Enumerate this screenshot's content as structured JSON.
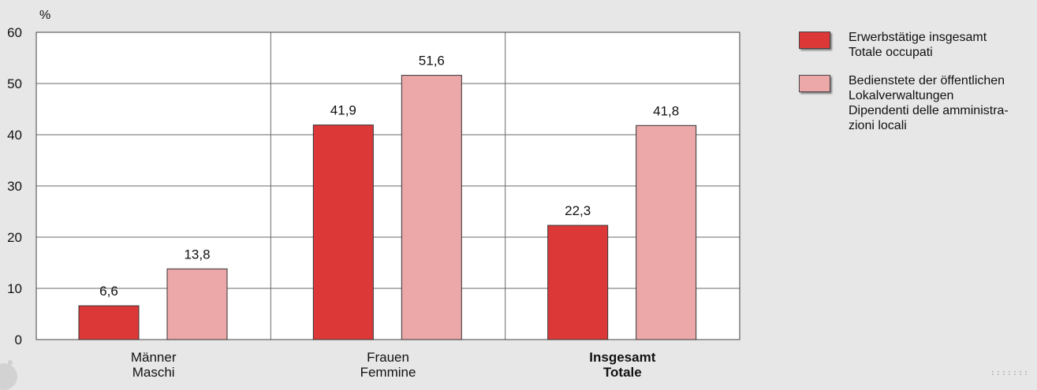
{
  "chart_data": {
    "type": "bar",
    "unit": "%",
    "ylim": [
      0,
      60
    ],
    "yticks": [
      0,
      10,
      20,
      30,
      40,
      50,
      60
    ],
    "categories": [
      {
        "line1": "Männer",
        "line2": "Maschi",
        "bold": false
      },
      {
        "line1": "Frauen",
        "line2": "Femmine",
        "bold": false
      },
      {
        "line1": "Insgesamt",
        "line2": "Totale",
        "bold": true
      }
    ],
    "series": [
      {
        "name": "Erwerbstätige insgesamt / Totale occupati",
        "color": "#dc3838",
        "values": [
          6.6,
          41.9,
          22.3
        ],
        "labels": [
          "6,6",
          "41,9",
          "22,3"
        ]
      },
      {
        "name": "Bedienstete der öffentlichen Lokalverwaltungen / Dipendenti delle amministrazioni locali",
        "color": "#eca8a8",
        "values": [
          13.8,
          51.6,
          41.8
        ],
        "labels": [
          "13,8",
          "51,6",
          "41,8"
        ]
      }
    ],
    "grid": true,
    "legend_position": "right"
  },
  "legend": [
    {
      "lines": [
        "Erwerbstätige insgesamt",
        "Totale occupati"
      ],
      "color": "#dc3838"
    },
    {
      "lines": [
        "Bedienstete der öffentlichen",
        "Lokalverwaltungen",
        "Dipendenti delle amministra-",
        "zioni locali"
      ],
      "color": "#eca8a8"
    }
  ],
  "corner_mark": ":::::::"
}
